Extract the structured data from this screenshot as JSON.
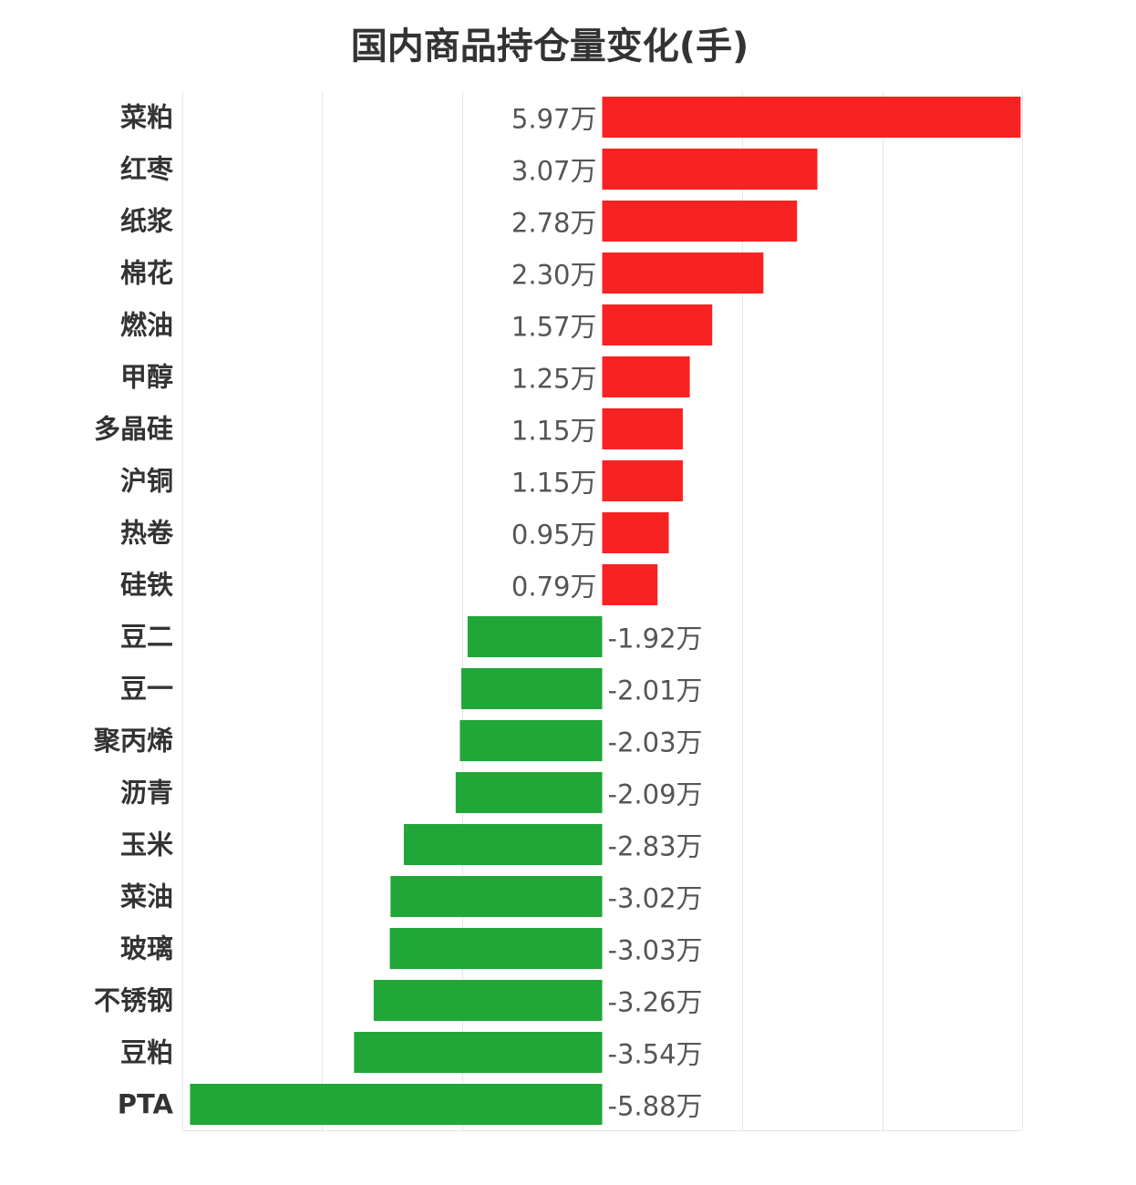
{
  "chart_data": {
    "type": "bar",
    "orientation": "horizontal",
    "title": "国内商品持仓量变化(手)",
    "xlabel": "",
    "ylabel": "",
    "unit_suffix": "万",
    "grid": true,
    "legend": "none",
    "xlim": [
      -6.0,
      6.0
    ],
    "colors": {
      "positive": "#f72323",
      "negative": "#21a638"
    },
    "categories": [
      "菜粕",
      "红枣",
      "纸浆",
      "棉花",
      "燃油",
      "甲醇",
      "多晶硅",
      "沪铜",
      "热卷",
      "硅铁",
      "豆二",
      "豆一",
      "聚丙烯",
      "沥青",
      "玉米",
      "菜油",
      "玻璃",
      "不锈钢",
      "豆粕",
      "PTA"
    ],
    "values": [
      5.97,
      3.07,
      2.78,
      2.3,
      1.57,
      1.25,
      1.15,
      1.15,
      0.95,
      0.79,
      -1.92,
      -2.01,
      -2.03,
      -2.09,
      -2.83,
      -3.02,
      -3.03,
      -3.26,
      -3.54,
      -5.88
    ],
    "value_labels": [
      "5.97万",
      "3.07万",
      "2.78万",
      "2.30万",
      "1.57万",
      "1.25万",
      "1.15万",
      "1.15万",
      "0.95万",
      "0.79万",
      "-1.92万",
      "-2.01万",
      "-2.03万",
      "-2.09万",
      "-2.83万",
      "-3.02万",
      "-3.03万",
      "-3.26万",
      "-3.54万",
      "-5.88万"
    ]
  }
}
